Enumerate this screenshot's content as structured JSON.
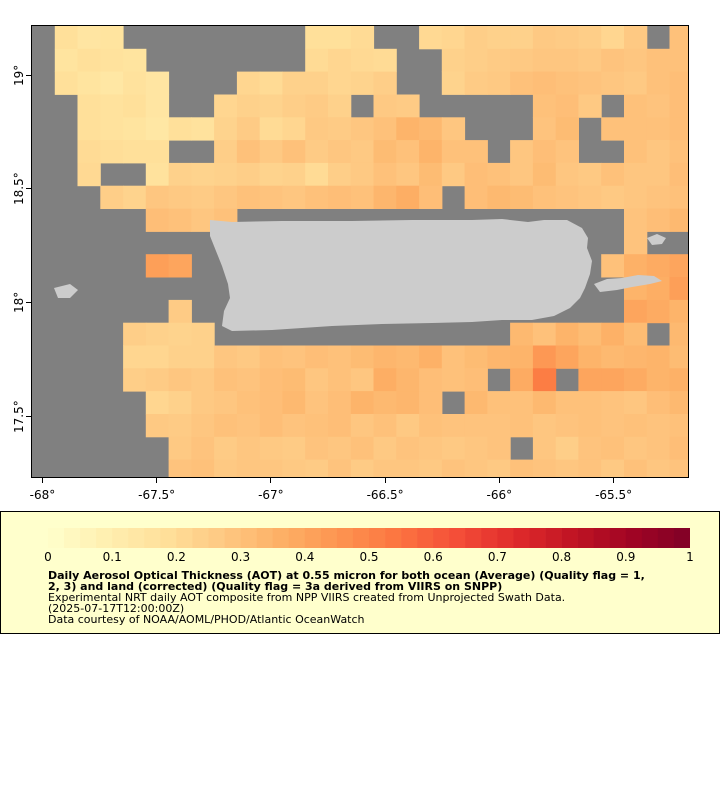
{
  "map": {
    "lon_range": [
      -68.05,
      -65.17
    ],
    "lat_range": [
      17.23,
      19.22
    ],
    "x_ticks": [
      {
        "value": -68,
        "label": "-68°"
      },
      {
        "value": -67.5,
        "label": "-67.5°"
      },
      {
        "value": -67,
        "label": "-67°"
      },
      {
        "value": -66.5,
        "label": "-66.5°"
      },
      {
        "value": -66,
        "label": "-66°"
      },
      {
        "value": -65.5,
        "label": "-65.5°"
      }
    ],
    "y_ticks": [
      {
        "value": 19,
        "label": "19°"
      },
      {
        "value": 18.5,
        "label": "18.5°"
      },
      {
        "value": 18,
        "label": "18°"
      },
      {
        "value": 17.5,
        "label": "17.5°"
      }
    ],
    "colors": {
      "no_data": "#808080",
      "land": "#cccccc"
    },
    "grid": {
      "cell_deg": 0.1,
      "cols": 29,
      "rows": 20,
      "note_rows": "top row first, values are AOT, null = no data"
    },
    "aot": [
      [
        null,
        0.18,
        0.15,
        0.16,
        null,
        null,
        null,
        null,
        null,
        null,
        null,
        null,
        0.18,
        0.18,
        0.2,
        null,
        null,
        0.21,
        0.22,
        0.25,
        0.24,
        0.24,
        0.27,
        0.26,
        0.25,
        0.22,
        0.27,
        null,
        0.3
      ],
      [
        null,
        0.16,
        0.18,
        0.17,
        0.16,
        null,
        null,
        null,
        null,
        null,
        null,
        null,
        0.2,
        0.22,
        0.21,
        0.2,
        null,
        null,
        0.24,
        0.25,
        0.26,
        0.27,
        0.28,
        0.28,
        0.27,
        0.29,
        0.28,
        0.3,
        0.3
      ],
      [
        null,
        0.18,
        0.16,
        0.14,
        0.17,
        0.15,
        null,
        null,
        null,
        0.22,
        0.2,
        0.24,
        0.24,
        0.22,
        0.23,
        0.25,
        null,
        null,
        0.23,
        0.26,
        0.27,
        0.3,
        0.31,
        0.3,
        0.29,
        0.28,
        0.27,
        0.3,
        0.31
      ],
      [
        null,
        null,
        0.18,
        0.17,
        0.18,
        0.15,
        null,
        null,
        0.22,
        0.24,
        0.23,
        0.25,
        0.26,
        0.24,
        null,
        0.27,
        0.26,
        null,
        null,
        null,
        null,
        null,
        0.3,
        0.31,
        0.27,
        null,
        0.3,
        0.29,
        0.31
      ],
      [
        null,
        null,
        0.18,
        0.17,
        0.16,
        0.14,
        0.18,
        0.17,
        0.23,
        0.26,
        0.2,
        0.22,
        0.27,
        0.26,
        0.28,
        0.3,
        0.35,
        0.33,
        0.28,
        null,
        null,
        null,
        0.29,
        0.32,
        null,
        0.3,
        0.3,
        0.3,
        0.31
      ],
      [
        null,
        null,
        0.2,
        0.19,
        0.18,
        0.18,
        null,
        null,
        0.25,
        0.3,
        0.27,
        0.3,
        0.26,
        0.28,
        0.27,
        0.32,
        0.3,
        0.35,
        0.3,
        0.3,
        null,
        0.28,
        0.31,
        0.29,
        null,
        null,
        0.3,
        0.28,
        0.3
      ],
      [
        null,
        null,
        0.21,
        null,
        null,
        0.17,
        0.24,
        0.23,
        0.24,
        0.25,
        0.23,
        0.24,
        0.2,
        0.25,
        0.27,
        0.3,
        0.28,
        0.32,
        0.27,
        0.31,
        0.3,
        0.28,
        0.32,
        0.28,
        0.27,
        0.3,
        0.28,
        0.28,
        0.31
      ],
      [
        null,
        null,
        null,
        0.25,
        0.23,
        0.28,
        0.27,
        0.26,
        0.28,
        0.3,
        0.29,
        0.28,
        0.3,
        0.31,
        0.3,
        0.34,
        0.37,
        0.31,
        null,
        0.31,
        0.33,
        0.32,
        0.3,
        0.29,
        0.28,
        0.27,
        0.28,
        0.29,
        0.3
      ],
      [
        null,
        null,
        null,
        null,
        null,
        0.31,
        0.3,
        0.28,
        0.3,
        null,
        null,
        null,
        null,
        null,
        null,
        null,
        null,
        null,
        null,
        null,
        null,
        null,
        null,
        null,
        null,
        null,
        0.29,
        0.31,
        0.33
      ],
      [
        null,
        null,
        null,
        null,
        null,
        null,
        null,
        null,
        null,
        null,
        null,
        null,
        null,
        null,
        null,
        null,
        null,
        null,
        null,
        null,
        null,
        null,
        null,
        null,
        null,
        null,
        0.29,
        null,
        null
      ],
      [
        null,
        null,
        null,
        null,
        null,
        0.42,
        0.4,
        null,
        null,
        null,
        null,
        null,
        null,
        null,
        null,
        null,
        null,
        null,
        null,
        null,
        null,
        null,
        null,
        null,
        null,
        0.3,
        0.36,
        0.38,
        0.4
      ],
      [
        null,
        null,
        null,
        null,
        null,
        null,
        null,
        null,
        null,
        null,
        null,
        null,
        null,
        null,
        null,
        null,
        null,
        null,
        null,
        null,
        null,
        null,
        null,
        null,
        null,
        null,
        0.35,
        0.37,
        0.42
      ],
      [
        null,
        null,
        null,
        null,
        null,
        null,
        0.26,
        null,
        null,
        null,
        null,
        null,
        null,
        null,
        null,
        null,
        null,
        null,
        null,
        null,
        null,
        null,
        null,
        null,
        null,
        null,
        0.4,
        0.38,
        0.35
      ],
      [
        null,
        null,
        null,
        null,
        0.25,
        0.24,
        0.23,
        0.24,
        null,
        null,
        null,
        null,
        null,
        null,
        null,
        null,
        null,
        null,
        null,
        null,
        null,
        0.33,
        0.3,
        0.35,
        0.32,
        0.36,
        0.32,
        null,
        0.33
      ],
      [
        null,
        null,
        null,
        null,
        0.22,
        0.22,
        0.24,
        0.24,
        0.28,
        0.27,
        0.3,
        0.29,
        0.31,
        0.3,
        0.32,
        0.34,
        0.33,
        0.36,
        0.3,
        0.32,
        0.34,
        0.35,
        0.44,
        0.4,
        0.35,
        0.33,
        0.34,
        0.35,
        0.32
      ],
      [
        null,
        null,
        null,
        null,
        0.25,
        0.26,
        0.28,
        0.27,
        0.3,
        0.29,
        0.31,
        0.32,
        0.28,
        0.3,
        0.28,
        0.37,
        0.34,
        0.31,
        0.3,
        0.31,
        null,
        0.38,
        0.52,
        null,
        0.4,
        0.4,
        0.38,
        0.35,
        0.36
      ],
      [
        null,
        null,
        null,
        null,
        null,
        0.22,
        0.24,
        0.27,
        0.28,
        0.3,
        0.31,
        0.33,
        0.29,
        0.31,
        0.35,
        0.33,
        0.34,
        0.31,
        null,
        0.33,
        0.3,
        0.3,
        0.33,
        0.3,
        0.3,
        0.29,
        0.28,
        0.31,
        0.33
      ],
      [
        null,
        null,
        null,
        null,
        null,
        0.27,
        0.26,
        0.28,
        0.3,
        0.29,
        0.31,
        0.29,
        0.3,
        0.31,
        0.28,
        0.3,
        0.27,
        0.3,
        0.29,
        0.29,
        0.29,
        0.3,
        0.28,
        0.29,
        0.3,
        0.29,
        0.3,
        0.29,
        0.3
      ],
      [
        null,
        null,
        null,
        null,
        null,
        null,
        0.27,
        0.29,
        0.26,
        0.28,
        0.27,
        0.26,
        0.29,
        0.28,
        0.3,
        0.27,
        0.29,
        0.28,
        0.27,
        0.28,
        0.29,
        null,
        0.28,
        0.25,
        0.29,
        0.3,
        0.28,
        0.29,
        0.31
      ],
      [
        null,
        null,
        null,
        null,
        null,
        null,
        0.29,
        0.3,
        0.27,
        0.28,
        0.28,
        0.27,
        0.26,
        0.29,
        0.26,
        0.28,
        0.28,
        0.27,
        0.29,
        0.28,
        0.27,
        0.3,
        0.29,
        0.28,
        0.29,
        0.27,
        0.3,
        0.28,
        0.29
      ]
    ]
  },
  "colorbar": {
    "min": 0,
    "max": 1,
    "labels": [
      "0",
      "0.1",
      "0.2",
      "0.3",
      "0.4",
      "0.5",
      "0.6",
      "0.7",
      "0.8",
      "0.9",
      "1"
    ],
    "stops": [
      "#ffffcc",
      "#ffefb0",
      "#ffe09a",
      "#fec882",
      "#fdb066",
      "#fd9450",
      "#fc7440",
      "#f44e38",
      "#e02b2b",
      "#c01423",
      "#a00424",
      "#800026"
    ]
  },
  "caption": {
    "line1": "Daily Aerosol Optical Thickness (AOT) at 0.55 micron for both ocean (Average) (Quality flag = 1,",
    "line2": "2, 3) and land (corrected) (Quality flag = 3a derived from VIIRS on SNPP)",
    "line3": "Experimental NRT daily AOT composite from NPP VIIRS created from Unprojected Swath Data.",
    "line4": "(2025-07-17T12:00:00Z)",
    "line5": "Data courtesy of NOAA/AOML/PHOD/Atlantic OceanWatch"
  }
}
